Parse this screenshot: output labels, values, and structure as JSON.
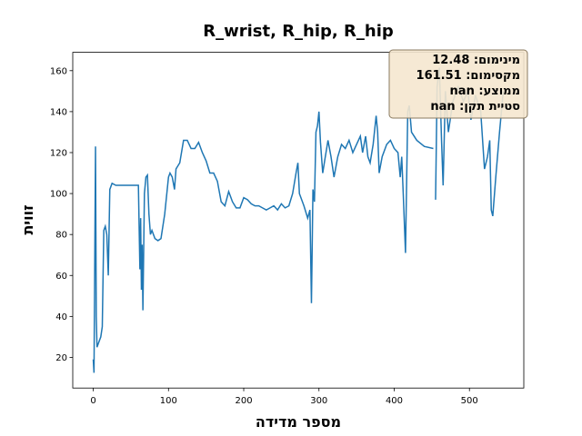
{
  "chart_data": {
    "type": "line",
    "title": "R_wrist, R_hip, R_hip",
    "x_label": "מספר מדידה",
    "y_label": "זווית",
    "xlim": [
      -27.25,
      572.25
    ],
    "ylim": [
      5.03,
      168.96
    ],
    "xticks": [
      0,
      100,
      200,
      300,
      400,
      500
    ],
    "yticks": [
      20,
      40,
      60,
      80,
      100,
      120,
      140,
      160
    ],
    "series": [
      {
        "color": "#1f77b4",
        "x": [
          0,
          1,
          3,
          4,
          5,
          8,
          10,
          12,
          14,
          16,
          18,
          20,
          22,
          25,
          30,
          40,
          50,
          60,
          62,
          63,
          64,
          65,
          66,
          68,
          70,
          72,
          74,
          76,
          78,
          82,
          86,
          90,
          95,
          100,
          102,
          105,
          108,
          110,
          115,
          120,
          125,
          130,
          135,
          140,
          145,
          150,
          155,
          160,
          165,
          170,
          175,
          180,
          185,
          190,
          195,
          200,
          205,
          210,
          215,
          220,
          225,
          230,
          235,
          240,
          245,
          250,
          255,
          260,
          265,
          270,
          272,
          274,
          280,
          285,
          288,
          290,
          292,
          294,
          296,
          298,
          300,
          302,
          305,
          308,
          312,
          316,
          320,
          325,
          330,
          335,
          340,
          345,
          350,
          355,
          358,
          362,
          365,
          368,
          372,
          376,
          378,
          380,
          384,
          390,
          395,
          400,
          405,
          408,
          410,
          412,
          415,
          418,
          420,
          423,
          430,
          440,
          452,
          453,
          455,
          457,
          460,
          463,
          465,
          468,
          472,
          478,
          485,
          492,
          498,
          502,
          508,
          515,
          520,
          524,
          527,
          529,
          531,
          535,
          540,
          545
        ],
        "values": [
          19,
          12.48,
          123,
          40,
          25,
          28,
          30,
          35,
          82,
          84,
          80,
          60,
          102,
          105,
          104,
          104,
          104,
          104,
          63,
          88,
          53,
          75,
          43,
          100,
          108,
          109,
          90,
          80,
          82,
          78,
          77,
          78,
          90,
          108,
          110,
          108,
          102,
          112,
          115,
          126,
          126,
          122,
          122,
          125,
          120,
          116,
          110,
          110,
          106,
          96,
          94,
          101,
          96,
          93,
          93,
          98,
          97,
          95,
          94,
          94,
          93,
          92,
          93,
          94,
          92,
          95,
          93,
          94,
          100,
          111,
          115,
          100,
          94,
          88,
          92,
          46.5,
          102,
          96,
          130,
          133,
          140,
          125,
          110,
          117,
          126,
          118,
          108,
          118,
          124,
          122,
          126,
          120,
          124,
          128,
          120,
          128,
          118,
          115,
          124,
          138,
          130,
          110,
          118,
          124,
          126,
          122,
          120,
          108,
          118,
          100,
          71,
          140,
          143,
          130,
          126,
          123,
          122,
          null,
          97,
          152,
          161.51,
          125,
          104,
          150,
          130,
          145,
          152,
          145,
          150,
          136,
          148,
          140,
          112,
          118,
          126,
          92,
          89,
          108,
          130,
          150
        ]
      }
    ],
    "stats_box": [
      "מינימום: 12.48",
      "מקסימום: 161.51",
      "ממוצע: nan",
      "סטיית תקן: nan"
    ]
  }
}
